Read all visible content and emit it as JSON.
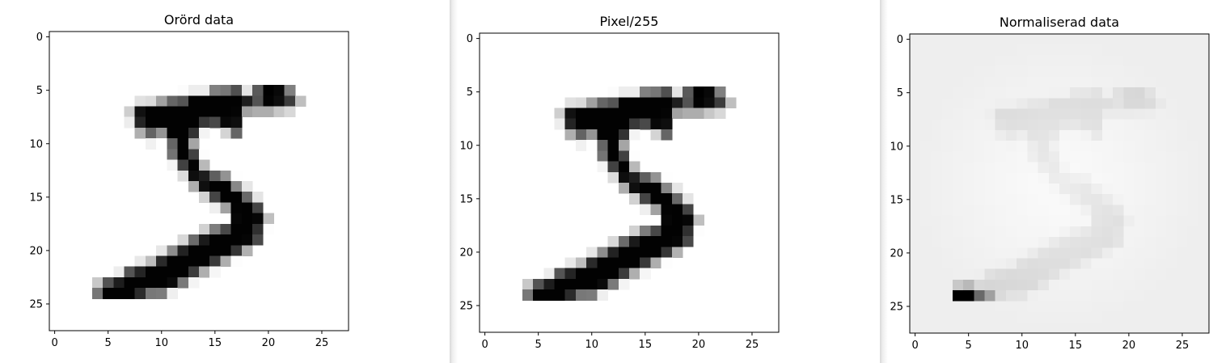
{
  "chart_data": [
    {
      "type": "heatmap",
      "title": "Orörd data",
      "colormap": "gray_r",
      "grid": false,
      "xlim": [
        -0.5,
        27.5
      ],
      "ylim": [
        27.5,
        -0.5
      ],
      "xticks": [
        "0",
        "5",
        "10",
        "15",
        "20",
        "25"
      ],
      "yticks": [
        "0",
        "5",
        "10",
        "15",
        "20",
        "25"
      ],
      "value_range": [
        0,
        255
      ],
      "rows": 28,
      "cols": 28,
      "nonzero_pixels": [
        [
          5,
          12,
          3
        ],
        [
          5,
          13,
          18
        ],
        [
          5,
          14,
          18
        ],
        [
          5,
          15,
          126
        ],
        [
          5,
          16,
          136
        ],
        [
          5,
          17,
          175
        ],
        [
          5,
          18,
          26
        ],
        [
          5,
          19,
          166
        ],
        [
          5,
          20,
          255
        ],
        [
          5,
          21,
          247
        ],
        [
          5,
          22,
          127
        ],
        [
          6,
          8,
          30
        ],
        [
          6,
          9,
          36
        ],
        [
          6,
          10,
          94
        ],
        [
          6,
          11,
          154
        ],
        [
          6,
          12,
          170
        ],
        [
          6,
          13,
          253
        ],
        [
          6,
          14,
          253
        ],
        [
          6,
          15,
          253
        ],
        [
          6,
          16,
          253
        ],
        [
          6,
          17,
          253
        ],
        [
          6,
          18,
          225
        ],
        [
          6,
          19,
          172
        ],
        [
          6,
          20,
          253
        ],
        [
          6,
          21,
          242
        ],
        [
          6,
          22,
          195
        ],
        [
          6,
          23,
          64
        ],
        [
          7,
          7,
          49
        ],
        [
          7,
          8,
          238
        ],
        [
          7,
          9,
          253
        ],
        [
          7,
          10,
          253
        ],
        [
          7,
          11,
          253
        ],
        [
          7,
          12,
          253
        ],
        [
          7,
          13,
          253
        ],
        [
          7,
          14,
          253
        ],
        [
          7,
          15,
          253
        ],
        [
          7,
          16,
          253
        ],
        [
          7,
          17,
          251
        ],
        [
          7,
          18,
          93
        ],
        [
          7,
          19,
          82
        ],
        [
          7,
          20,
          82
        ],
        [
          7,
          21,
          56
        ],
        [
          7,
          22,
          39
        ],
        [
          8,
          7,
          18
        ],
        [
          8,
          8,
          219
        ],
        [
          8,
          9,
          253
        ],
        [
          8,
          10,
          253
        ],
        [
          8,
          11,
          253
        ],
        [
          8,
          12,
          253
        ],
        [
          8,
          13,
          253
        ],
        [
          8,
          14,
          198
        ],
        [
          8,
          15,
          182
        ],
        [
          8,
          16,
          247
        ],
        [
          8,
          17,
          241
        ],
        [
          9,
          8,
          80
        ],
        [
          9,
          9,
          156
        ],
        [
          9,
          10,
          107
        ],
        [
          9,
          11,
          253
        ],
        [
          9,
          12,
          253
        ],
        [
          9,
          13,
          205
        ],
        [
          9,
          14,
          11
        ],
        [
          9,
          16,
          43
        ],
        [
          9,
          17,
          154
        ],
        [
          10,
          9,
          14
        ],
        [
          10,
          10,
          1
        ],
        [
          10,
          11,
          154
        ],
        [
          10,
          12,
          253
        ],
        [
          10,
          13,
          90
        ],
        [
          11,
          11,
          139
        ],
        [
          11,
          12,
          253
        ],
        [
          11,
          13,
          190
        ],
        [
          11,
          14,
          2
        ],
        [
          12,
          11,
          11
        ],
        [
          12,
          12,
          190
        ],
        [
          12,
          13,
          253
        ],
        [
          12,
          14,
          70
        ],
        [
          13,
          12,
          35
        ],
        [
          13,
          13,
          241
        ],
        [
          13,
          14,
          225
        ],
        [
          13,
          15,
          160
        ],
        [
          13,
          16,
          108
        ],
        [
          13,
          17,
          1
        ],
        [
          14,
          13,
          81
        ],
        [
          14,
          14,
          240
        ],
        [
          14,
          15,
          253
        ],
        [
          14,
          16,
          253
        ],
        [
          14,
          17,
          119
        ],
        [
          14,
          18,
          25
        ],
        [
          15,
          14,
          45
        ],
        [
          15,
          15,
          186
        ],
        [
          15,
          16,
          253
        ],
        [
          15,
          17,
          253
        ],
        [
          15,
          18,
          150
        ],
        [
          15,
          19,
          27
        ],
        [
          16,
          15,
          16
        ],
        [
          16,
          16,
          93
        ],
        [
          16,
          17,
          252
        ],
        [
          16,
          18,
          253
        ],
        [
          16,
          19,
          187
        ],
        [
          17,
          17,
          249
        ],
        [
          17,
          18,
          253
        ],
        [
          17,
          19,
          249
        ],
        [
          17,
          20,
          64
        ],
        [
          18,
          14,
          46
        ],
        [
          18,
          15,
          130
        ],
        [
          18,
          16,
          183
        ],
        [
          18,
          17,
          253
        ],
        [
          18,
          18,
          253
        ],
        [
          18,
          19,
          207
        ],
        [
          18,
          20,
          2
        ],
        [
          19,
          12,
          39
        ],
        [
          19,
          13,
          148
        ],
        [
          19,
          14,
          229
        ],
        [
          19,
          15,
          253
        ],
        [
          19,
          16,
          253
        ],
        [
          19,
          17,
          253
        ],
        [
          19,
          18,
          250
        ],
        [
          19,
          19,
          182
        ],
        [
          20,
          10,
          24
        ],
        [
          20,
          11,
          114
        ],
        [
          20,
          12,
          221
        ],
        [
          20,
          13,
          253
        ],
        [
          20,
          14,
          253
        ],
        [
          20,
          15,
          253
        ],
        [
          20,
          16,
          253
        ],
        [
          20,
          17,
          201
        ],
        [
          20,
          18,
          78
        ],
        [
          21,
          8,
          23
        ],
        [
          21,
          9,
          66
        ],
        [
          21,
          10,
          213
        ],
        [
          21,
          11,
          253
        ],
        [
          21,
          12,
          253
        ],
        [
          21,
          13,
          253
        ],
        [
          21,
          14,
          253
        ],
        [
          21,
          15,
          198
        ],
        [
          21,
          16,
          81
        ],
        [
          21,
          17,
          2
        ],
        [
          22,
          6,
          18
        ],
        [
          22,
          7,
          171
        ],
        [
          22,
          8,
          219
        ],
        [
          22,
          9,
          253
        ],
        [
          22,
          10,
          253
        ],
        [
          22,
          11,
          253
        ],
        [
          22,
          12,
          253
        ],
        [
          22,
          13,
          195
        ],
        [
          22,
          14,
          80
        ],
        [
          22,
          15,
          9
        ],
        [
          23,
          4,
          55
        ],
        [
          23,
          5,
          172
        ],
        [
          23,
          6,
          226
        ],
        [
          23,
          7,
          253
        ],
        [
          23,
          8,
          253
        ],
        [
          23,
          9,
          253
        ],
        [
          23,
          10,
          253
        ],
        [
          23,
          11,
          244
        ],
        [
          23,
          12,
          133
        ],
        [
          23,
          13,
          11
        ],
        [
          24,
          4,
          136
        ],
        [
          24,
          5,
          253
        ],
        [
          24,
          6,
          253
        ],
        [
          24,
          7,
          253
        ],
        [
          24,
          8,
          212
        ],
        [
          24,
          9,
          135
        ],
        [
          24,
          10,
          132
        ],
        [
          24,
          11,
          16
        ]
      ]
    },
    {
      "type": "heatmap",
      "title": "Pixel/255",
      "colormap": "gray_r",
      "grid": false,
      "xlim": [
        -0.5,
        27.5
      ],
      "ylim": [
        27.5,
        -0.5
      ],
      "xticks": [
        "0",
        "5",
        "10",
        "15",
        "20",
        "25"
      ],
      "yticks": [
        "0",
        "5",
        "10",
        "15",
        "20",
        "25"
      ],
      "value_range": [
        0,
        1
      ],
      "source": "same values as the first panel divided by 255"
    },
    {
      "type": "heatmap",
      "title": "Normaliserad data",
      "colormap": "gray_r",
      "grid": false,
      "xlim": [
        -0.5,
        27.5
      ],
      "ylim": [
        27.5,
        -0.5
      ],
      "xticks": [
        "0",
        "5",
        "10",
        "15",
        "20",
        "25"
      ],
      "yticks": [
        "0",
        "5",
        "10",
        "15",
        "20",
        "25"
      ],
      "source": "the first panel standardized per pixel: a light gray background with the digit faint and one black spot at rows 24, columns 4-5"
    }
  ]
}
